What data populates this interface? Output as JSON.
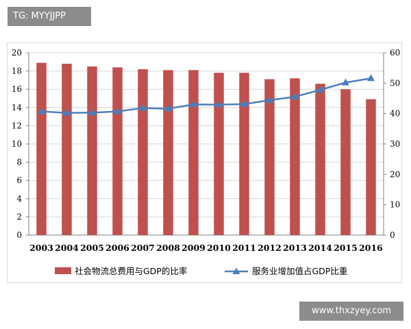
{
  "watermark_top": "TG: MYYJJPP",
  "watermark_bottom": "www.thxzyey.com",
  "chart_data": {
    "type": "bar",
    "categories": [
      "2003",
      "2004",
      "2005",
      "2006",
      "2007",
      "2008",
      "2009",
      "2010",
      "2011",
      "2012",
      "2013",
      "2014",
      "2015",
      "2016"
    ],
    "series": [
      {
        "name": "社会物流总费用与GDP的比率",
        "type": "bar",
        "axis": "left",
        "color": "#c0504d",
        "values": [
          18.9,
          18.8,
          18.5,
          18.4,
          18.2,
          18.1,
          18.1,
          17.8,
          17.8,
          17.1,
          17.2,
          16.6,
          16.0,
          14.9
        ]
      },
      {
        "name": "服务业增加值占GDP比重",
        "type": "line",
        "axis": "right",
        "color": "#4a7ebb",
        "marker": "triangle",
        "values": [
          40.7,
          40.2,
          40.3,
          40.7,
          41.8,
          41.6,
          43.0,
          42.9,
          43.1,
          44.4,
          45.5,
          47.8,
          50.2,
          51.6
        ]
      }
    ],
    "y_left": {
      "ylim": [
        0,
        20
      ],
      "ticks": [
        "0",
        "2",
        "4",
        "6",
        "8",
        "10",
        "12",
        "14",
        "16",
        "18",
        "20"
      ]
    },
    "y_right": {
      "ylim": [
        0,
        60
      ],
      "ticks": [
        "0",
        "10",
        "20",
        "30",
        "40",
        "50",
        "60"
      ]
    },
    "grid": true,
    "legend": "bottom"
  }
}
